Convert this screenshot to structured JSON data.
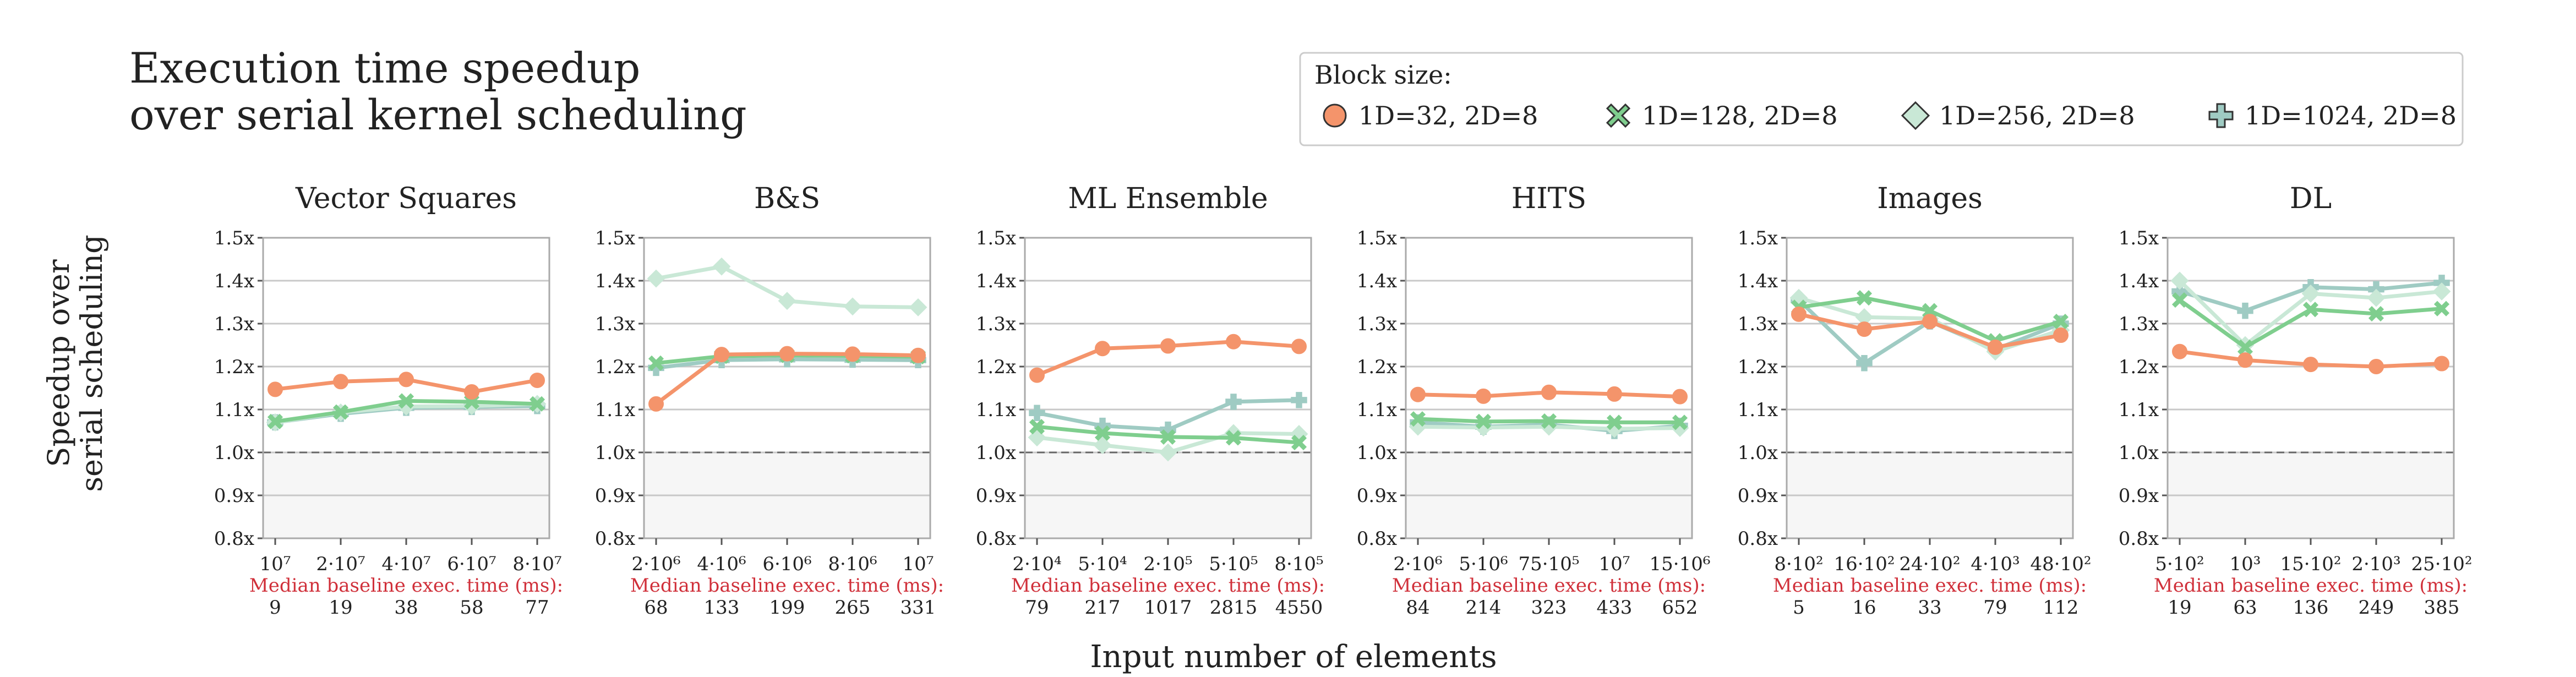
{
  "title_lines": [
    "Execution time speedup",
    "over serial kernel scheduling"
  ],
  "ylabel_lines": [
    "Speedup over",
    "serial scheduling"
  ],
  "xlabel": "Input number of elements",
  "baseline_label": "Median baseline exec. time (ms):",
  "legend": {
    "title": "Block size:",
    "entries": [
      {
        "label": "1D=32, 2D=8",
        "color": "#f4946b",
        "marker": "circle"
      },
      {
        "label": "1D=128, 2D=8",
        "color": "#7fce8e",
        "marker": "x"
      },
      {
        "label": "1D=256, 2D=8",
        "color": "#c9e8d6",
        "marker": "diamond"
      },
      {
        "label": "1D=1024, 2D=8",
        "color": "#9fcbc3",
        "marker": "plus"
      }
    ]
  },
  "colors": {
    "s32": "#f4946b",
    "s128": "#7fce8e",
    "s256": "#c9e8d6",
    "s1024": "#9fcbc3",
    "baseline_text": "#d0303a",
    "grid": "#c8c8c8",
    "below_one_fill": "#f6f6f6"
  },
  "chart_data": [
    {
      "type": "line",
      "title": "Vector Squares",
      "ylim": [
        0.8,
        1.5
      ],
      "yticks": [
        "0.8x",
        "0.9x",
        "1.0x",
        "1.1x",
        "1.2x",
        "1.3x",
        "1.4x",
        "1.5x"
      ],
      "x_ticks": [
        "10⁷",
        "2·10⁷",
        "4·10⁷",
        "6·10⁷",
        "8·10⁷"
      ],
      "baseline_ms": [
        "9",
        "19",
        "38",
        "58",
        "77"
      ],
      "series": [
        {
          "name": "1D=32, 2D=8",
          "values": [
            1.147,
            1.165,
            1.17,
            1.141,
            1.168
          ]
        },
        {
          "name": "1D=128, 2D=8",
          "values": [
            1.072,
            1.094,
            1.12,
            1.118,
            1.113
          ]
        },
        {
          "name": "1D=256, 2D=8",
          "values": [
            1.07,
            1.093,
            1.107,
            1.108,
            1.113
          ]
        },
        {
          "name": "1D=1024, 2D=8",
          "values": [
            1.07,
            1.09,
            1.104,
            1.106,
            1.108
          ]
        }
      ]
    },
    {
      "type": "line",
      "title": "B&S",
      "ylim": [
        0.8,
        1.5
      ],
      "yticks": [
        "0.8x",
        "0.9x",
        "1.0x",
        "1.1x",
        "1.2x",
        "1.3x",
        "1.4x",
        "1.5x"
      ],
      "x_ticks": [
        "2·10⁶",
        "4·10⁶",
        "6·10⁶",
        "8·10⁶",
        "10⁷"
      ],
      "baseline_ms": [
        "68",
        "133",
        "199",
        "265",
        "331"
      ],
      "series": [
        {
          "name": "1D=32, 2D=8",
          "values": [
            1.113,
            1.228,
            1.23,
            1.229,
            1.226
          ]
        },
        {
          "name": "1D=128, 2D=8",
          "values": [
            1.208,
            1.224,
            1.226,
            1.225,
            1.223
          ]
        },
        {
          "name": "1D=256, 2D=8",
          "values": [
            1.405,
            1.433,
            1.353,
            1.34,
            1.338
          ]
        },
        {
          "name": "1D=1024, 2D=8",
          "values": [
            1.197,
            1.215,
            1.217,
            1.216,
            1.215
          ]
        }
      ]
    },
    {
      "type": "line",
      "title": "ML Ensemble",
      "ylim": [
        0.8,
        1.5
      ],
      "yticks": [
        "0.8x",
        "0.9x",
        "1.0x",
        "1.1x",
        "1.2x",
        "1.3x",
        "1.4x",
        "1.5x"
      ],
      "x_ticks": [
        "2·10⁴",
        "5·10⁴",
        "2·10⁵",
        "5·10⁵",
        "8·10⁵"
      ],
      "baseline_ms": [
        "79",
        "217",
        "1017",
        "2815",
        "4550"
      ],
      "series": [
        {
          "name": "1D=32, 2D=8",
          "values": [
            1.18,
            1.242,
            1.248,
            1.258,
            1.247
          ]
        },
        {
          "name": "1D=128, 2D=8",
          "values": [
            1.06,
            1.045,
            1.036,
            1.034,
            1.023
          ]
        },
        {
          "name": "1D=256, 2D=8",
          "values": [
            1.035,
            1.017,
            1.0,
            1.045,
            1.043
          ]
        },
        {
          "name": "1D=1024, 2D=8",
          "values": [
            1.092,
            1.062,
            1.053,
            1.118,
            1.122
          ]
        }
      ]
    },
    {
      "type": "line",
      "title": "HITS",
      "ylim": [
        0.8,
        1.5
      ],
      "yticks": [
        "0.8x",
        "0.9x",
        "1.0x",
        "1.1x",
        "1.2x",
        "1.3x",
        "1.4x",
        "1.5x"
      ],
      "x_ticks": [
        "2·10⁶",
        "5·10⁶",
        "75·10⁵",
        "10⁷",
        "15·10⁶"
      ],
      "baseline_ms": [
        "84",
        "214",
        "323",
        "433",
        "652"
      ],
      "series": [
        {
          "name": "1D=32, 2D=8",
          "values": [
            1.135,
            1.131,
            1.14,
            1.136,
            1.13
          ]
        },
        {
          "name": "1D=128, 2D=8",
          "values": [
            1.078,
            1.072,
            1.073,
            1.07,
            1.07
          ]
        },
        {
          "name": "1D=256, 2D=8",
          "values": [
            1.06,
            1.058,
            1.06,
            1.055,
            1.057
          ]
        },
        {
          "name": "1D=1024, 2D=8",
          "values": [
            1.07,
            1.06,
            1.065,
            1.05,
            1.062
          ]
        }
      ]
    },
    {
      "type": "line",
      "title": "Images",
      "ylim": [
        0.8,
        1.5
      ],
      "yticks": [
        "0.8x",
        "0.9x",
        "1.0x",
        "1.1x",
        "1.2x",
        "1.3x",
        "1.4x",
        "1.5x"
      ],
      "x_ticks": [
        "8·10²",
        "16·10²",
        "24·10²",
        "4·10³",
        "48·10²"
      ],
      "baseline_ms": [
        "5",
        "16",
        "33",
        "79",
        "112"
      ],
      "series": [
        {
          "name": "1D=32, 2D=8",
          "values": [
            1.322,
            1.287,
            1.305,
            1.245,
            1.273
          ]
        },
        {
          "name": "1D=128, 2D=8",
          "values": [
            1.338,
            1.36,
            1.33,
            1.26,
            1.305
          ]
        },
        {
          "name": "1D=256, 2D=8",
          "values": [
            1.36,
            1.315,
            1.312,
            1.235,
            1.285
          ]
        },
        {
          "name": "1D=1024, 2D=8",
          "values": [
            1.355,
            1.208,
            1.305,
            1.24,
            1.3
          ]
        }
      ]
    },
    {
      "type": "line",
      "title": "DL",
      "ylim": [
        0.8,
        1.5
      ],
      "yticks": [
        "0.8x",
        "0.9x",
        "1.0x",
        "1.1x",
        "1.2x",
        "1.3x",
        "1.4x",
        "1.5x"
      ],
      "x_ticks": [
        "5·10²",
        "10³",
        "15·10²",
        "2·10³",
        "25·10²"
      ],
      "baseline_ms": [
        "19",
        "63",
        "136",
        "249",
        "385"
      ],
      "series": [
        {
          "name": "1D=32, 2D=8",
          "values": [
            1.235,
            1.215,
            1.205,
            1.2,
            1.207
          ]
        },
        {
          "name": "1D=128, 2D=8",
          "values": [
            1.355,
            1.245,
            1.333,
            1.323,
            1.335
          ]
        },
        {
          "name": "1D=256, 2D=8",
          "values": [
            1.4,
            1.25,
            1.37,
            1.36,
            1.375
          ]
        },
        {
          "name": "1D=1024, 2D=8",
          "values": [
            1.375,
            1.33,
            1.385,
            1.38,
            1.395
          ]
        }
      ]
    }
  ]
}
